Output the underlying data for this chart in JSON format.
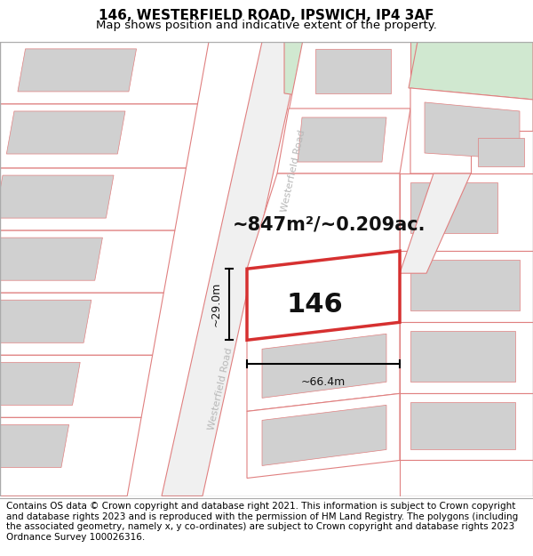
{
  "title_line1": "146, WESTERFIELD ROAD, IPSWICH, IP4 3AF",
  "title_line2": "Map shows position and indicative extent of the property.",
  "footer_text": "Contains OS data © Crown copyright and database right 2021. This information is subject to Crown copyright and database rights 2023 and is reproduced with the permission of HM Land Registry. The polygons (including the associated geometry, namely x, y co-ordinates) are subject to Crown copyright and database rights 2023 Ordnance Survey 100026316.",
  "area_text": "~847m²/~0.209ac.",
  "width_text": "~66.4m",
  "height_text": "~29.0m",
  "property_number": "146",
  "road_label_upper": "Westerfield Road",
  "road_label_lower": "Westerfield Road",
  "bg_color": "#ffffff",
  "map_bg": "#f5f5f5",
  "plot_outline_color": "#d63030",
  "other_outline_color": "#e08080",
  "building_fill": "#d0d0d0",
  "green_fill": "#d0e8d0",
  "title_fontsize": 11,
  "subtitle_fontsize": 9.5,
  "footer_fontsize": 7.5,
  "area_fontsize": 15,
  "number_fontsize": 22,
  "dim_fontsize": 9
}
